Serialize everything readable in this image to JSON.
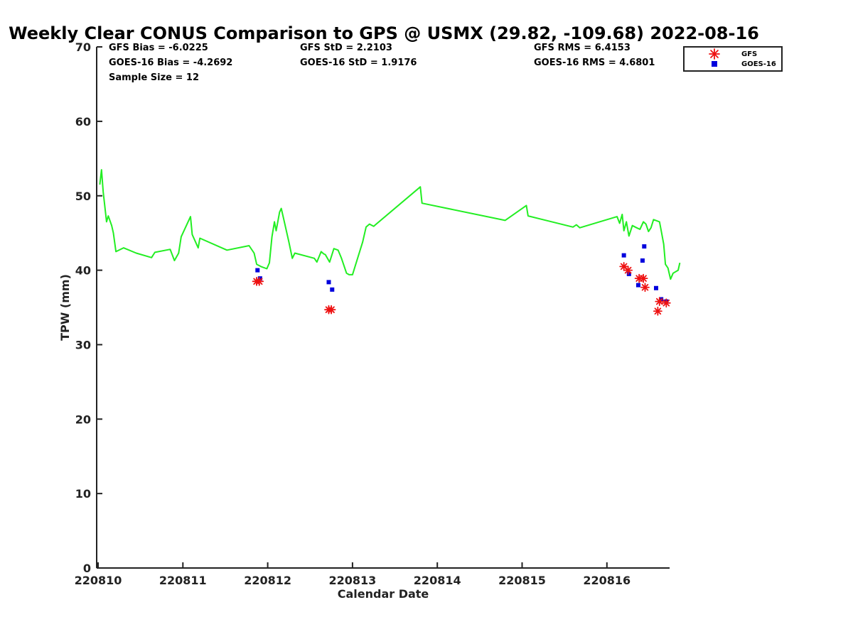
{
  "chart_data": {
    "type": "line",
    "title": "Weekly Clear CONUS Comparison to GPS @ USMX (29.82, -109.68) 2022-08-16",
    "xlabel": "Calendar Date",
    "ylabel": "TPW (mm)",
    "xlim": [
      0,
      6.75
    ],
    "ylim": [
      0,
      70
    ],
    "x_ticks": [
      0,
      1,
      2,
      3,
      4,
      5,
      6
    ],
    "x_tick_labels": [
      "220810",
      "220811",
      "220812",
      "220813",
      "220814",
      "220815",
      "220816"
    ],
    "y_ticks": [
      0,
      10,
      20,
      30,
      40,
      50,
      60,
      70
    ],
    "y_tick_labels": [
      "0",
      "10",
      "20",
      "30",
      "40",
      "50",
      "60",
      "70"
    ],
    "stats": {
      "gfs_bias": "GFS Bias = -6.0225",
      "goes_bias": "GOES-16 Bias = -4.2692",
      "sample_size": "Sample Size = 12",
      "gfs_std": "GFS StD = 2.2103",
      "goes_std": "GOES-16 StD = 1.9176",
      "gfs_rms": "GFS RMS = 6.4153",
      "goes_rms": "GOES-16 RMS = 4.6801"
    },
    "legend": {
      "location": "top-right",
      "entries": [
        "GFS",
        "GOES-16"
      ]
    },
    "colors": {
      "gps_line": "#22ee22",
      "gfs": "#ee1111",
      "goes": "#0000dd",
      "axis": "#222222"
    },
    "series": [
      {
        "name": "GPS",
        "kind": "line",
        "points": [
          [
            0.02,
            51.5
          ],
          [
            0.04,
            53.5
          ],
          [
            0.06,
            50.5
          ],
          [
            0.1,
            46.5
          ],
          [
            0.12,
            47.3
          ],
          [
            0.16,
            46.0
          ],
          [
            0.18,
            45.0
          ],
          [
            0.21,
            42.5
          ],
          [
            0.3,
            43.0
          ],
          [
            0.45,
            42.3
          ],
          [
            0.63,
            41.7
          ],
          [
            0.67,
            42.4
          ],
          [
            0.85,
            42.8
          ],
          [
            0.9,
            41.3
          ],
          [
            0.95,
            42.3
          ],
          [
            0.98,
            44.5
          ],
          [
            1.09,
            47.2
          ],
          [
            1.11,
            44.8
          ],
          [
            1.18,
            43.0
          ],
          [
            1.2,
            44.3
          ],
          [
            1.52,
            42.7
          ],
          [
            1.78,
            43.3
          ],
          [
            1.84,
            42.3
          ],
          [
            1.87,
            40.8
          ],
          [
            1.92,
            40.5
          ],
          [
            1.99,
            40.2
          ],
          [
            2.02,
            41.0
          ],
          [
            2.05,
            44.5
          ],
          [
            2.08,
            46.5
          ],
          [
            2.1,
            45.3
          ],
          [
            2.14,
            47.8
          ],
          [
            2.16,
            48.3
          ],
          [
            2.19,
            46.8
          ],
          [
            2.25,
            43.8
          ],
          [
            2.29,
            41.6
          ],
          [
            2.32,
            42.3
          ],
          [
            2.55,
            41.6
          ],
          [
            2.58,
            41.1
          ],
          [
            2.63,
            42.5
          ],
          [
            2.66,
            42.2
          ],
          [
            2.68,
            42.1
          ],
          [
            2.73,
            41.1
          ],
          [
            2.78,
            42.9
          ],
          [
            2.83,
            42.7
          ],
          [
            2.87,
            41.6
          ],
          [
            2.93,
            39.6
          ],
          [
            2.96,
            39.4
          ],
          [
            3.0,
            39.4
          ],
          [
            3.12,
            43.8
          ],
          [
            3.16,
            45.8
          ],
          [
            3.2,
            46.2
          ],
          [
            3.25,
            45.9
          ],
          [
            3.27,
            46.1
          ],
          [
            3.8,
            51.2
          ],
          [
            3.82,
            49.0
          ],
          [
            4.8,
            46.7
          ],
          [
            5.05,
            48.7
          ],
          [
            5.07,
            47.3
          ],
          [
            5.6,
            45.8
          ],
          [
            5.64,
            46.1
          ],
          [
            5.68,
            45.7
          ],
          [
            6.12,
            47.2
          ],
          [
            6.15,
            46.3
          ],
          [
            6.18,
            47.5
          ],
          [
            6.2,
            45.3
          ],
          [
            6.23,
            46.5
          ],
          [
            6.26,
            44.6
          ],
          [
            6.3,
            46.0
          ],
          [
            6.35,
            45.7
          ],
          [
            6.39,
            45.5
          ],
          [
            6.43,
            46.5
          ],
          [
            6.46,
            46.2
          ],
          [
            6.49,
            45.2
          ],
          [
            6.52,
            45.7
          ],
          [
            6.55,
            46.8
          ],
          [
            6.62,
            46.5
          ],
          [
            6.64,
            45.3
          ],
          [
            6.67,
            43.5
          ],
          [
            6.69,
            40.8
          ],
          [
            6.72,
            40.3
          ],
          [
            6.75,
            38.8
          ],
          [
            6.78,
            39.6
          ],
          [
            6.84,
            40.0
          ],
          [
            6.86,
            41.0
          ]
        ]
      },
      {
        "name": "GFS",
        "kind": "scatter",
        "marker": "asterisk",
        "points": [
          [
            1.87,
            38.5
          ],
          [
            1.9,
            38.5
          ],
          [
            2.72,
            34.7
          ],
          [
            2.75,
            34.7
          ],
          [
            6.2,
            40.5
          ],
          [
            6.25,
            40.0
          ],
          [
            6.38,
            38.9
          ],
          [
            6.43,
            38.9
          ],
          [
            6.45,
            37.7
          ],
          [
            6.6,
            34.5
          ],
          [
            6.62,
            35.8
          ],
          [
            6.7,
            35.6
          ]
        ]
      },
      {
        "name": "GOES-16",
        "kind": "scatter",
        "marker": "square",
        "points": [
          [
            1.88,
            40.0
          ],
          [
            1.91,
            38.9
          ],
          [
            2.72,
            38.4
          ],
          [
            2.76,
            37.4
          ],
          [
            6.2,
            42.0
          ],
          [
            6.26,
            39.5
          ],
          [
            6.37,
            38.0
          ],
          [
            6.42,
            41.3
          ],
          [
            6.44,
            43.2
          ],
          [
            6.58,
            37.6
          ],
          [
            6.64,
            36.1
          ],
          [
            6.7,
            35.8
          ]
        ]
      }
    ]
  }
}
